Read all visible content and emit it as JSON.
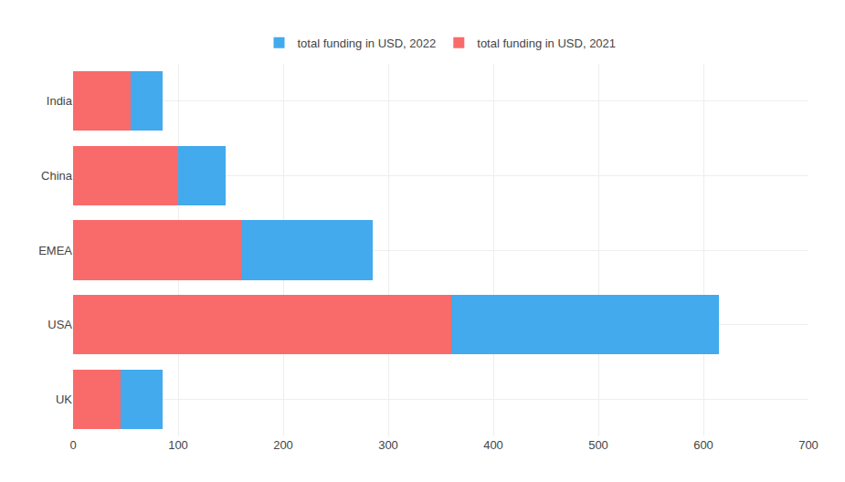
{
  "chart_data": {
    "type": "bar",
    "orientation": "horizontal",
    "stacked": true,
    "categories": [
      "India",
      "China",
      "EMEA",
      "USA",
      "UK"
    ],
    "series": [
      {
        "name": "total funding in USD, 2021",
        "color": "#f96b6b",
        "values": [
          55,
          100,
          160,
          360,
          45
        ]
      },
      {
        "name": "total funding in USD, 2022",
        "color": "#42aaed",
        "values": [
          30,
          45,
          125,
          255,
          40
        ]
      }
    ],
    "xlim": [
      0,
      700
    ],
    "xticks": [
      0,
      100,
      200,
      300,
      400,
      500,
      600,
      700
    ],
    "grid": true,
    "legend": "top"
  }
}
